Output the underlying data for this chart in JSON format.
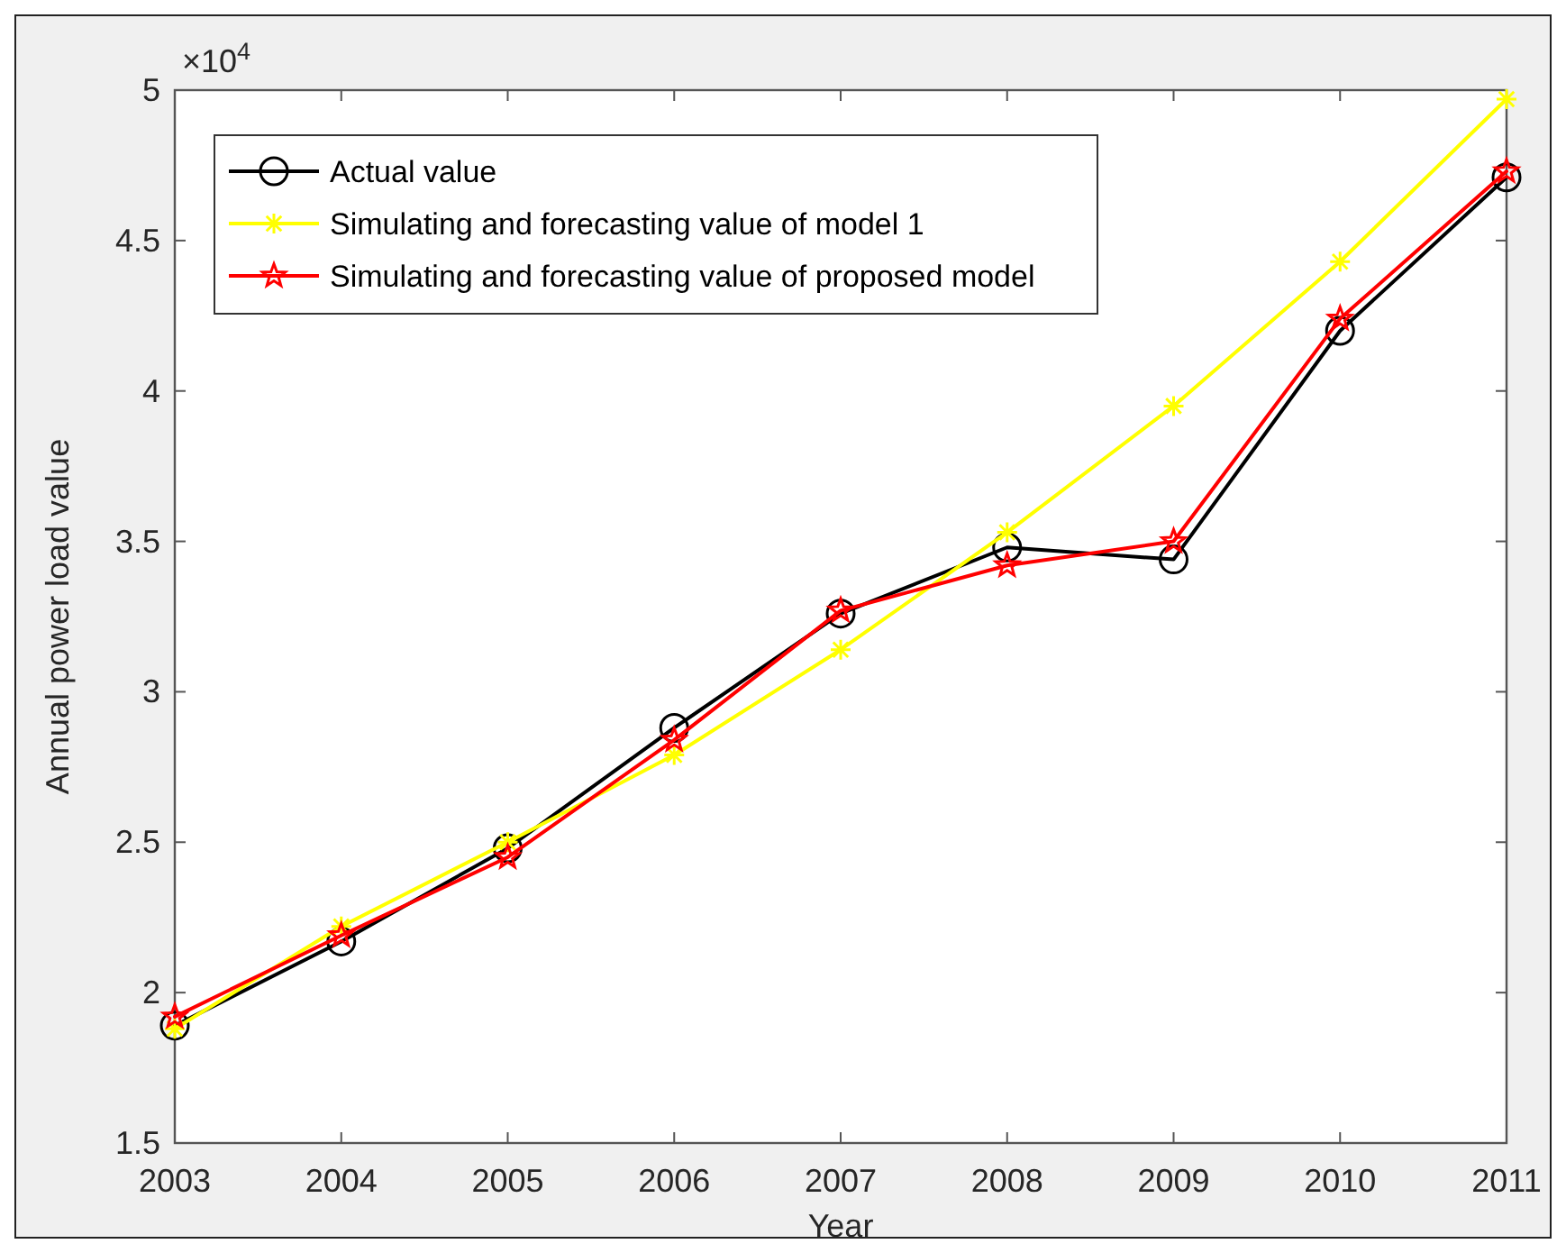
{
  "chart_data": {
    "type": "line",
    "xlabel": "Year",
    "ylabel": "Annual power load value",
    "annotations": [
      "×10$^{4}$"
    ],
    "x": [
      2003,
      2004,
      2005,
      2006,
      2007,
      2008,
      2009,
      2010,
      2011
    ],
    "xlim": [
      2003,
      2011
    ],
    "xticks": [
      2003,
      2004,
      2005,
      2006,
      2007,
      2008,
      2009,
      2010,
      2011
    ],
    "ylim": [
      1.5,
      5
    ],
    "yticks": [
      1.5,
      2,
      2.5,
      3,
      3.5,
      4,
      4.5,
      5
    ],
    "grid": false,
    "legend": "top left",
    "line_style": "solid",
    "series": [
      {
        "name": "Actual value",
        "color": "#000000",
        "marker": "circle",
        "values": [
          1.89,
          2.17,
          2.48,
          2.88,
          3.26,
          3.48,
          3.44,
          4.2,
          4.71
        ]
      },
      {
        "name": "Simulating and forecasting value of model 1",
        "color": "#ffff00",
        "marker": "cross",
        "values": [
          1.88,
          2.22,
          2.5,
          2.79,
          3.14,
          3.53,
          3.95,
          4.43,
          4.97
        ]
      },
      {
        "name": "Simulating and forecasting value of proposed model",
        "color": "#ff0000",
        "marker": "star",
        "values": [
          1.92,
          2.19,
          2.45,
          2.84,
          3.27,
          3.42,
          3.5,
          4.24,
          4.73
        ]
      }
    ]
  }
}
